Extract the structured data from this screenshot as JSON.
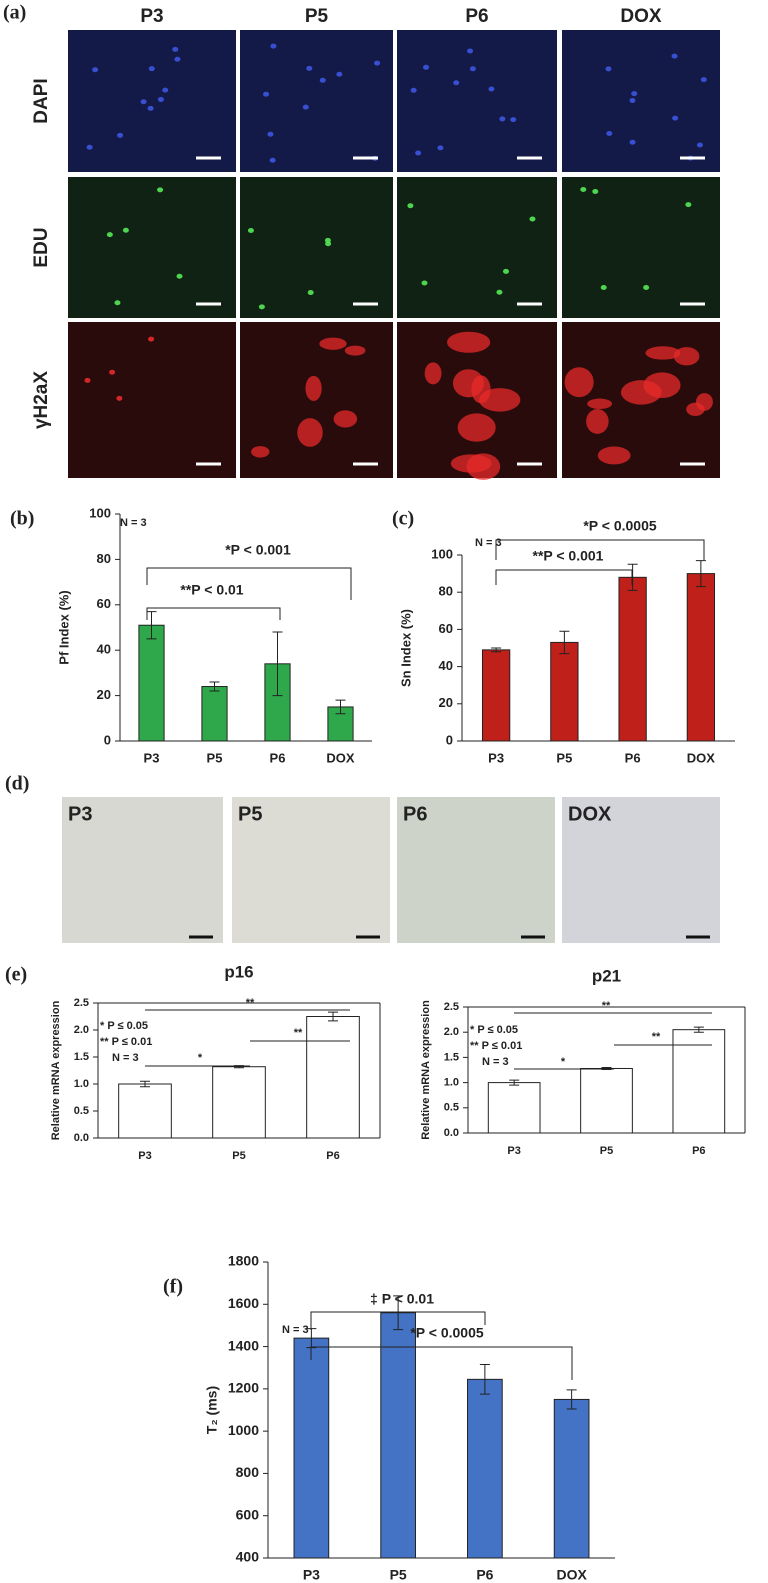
{
  "panel_labels": [
    "(a)",
    "(b)",
    "(c)",
    "(d)",
    "(e)",
    "(f)"
  ],
  "micrographs": {
    "columns": [
      "P3",
      "P5",
      "P6",
      "DOX"
    ],
    "rows": [
      "DAPI",
      "EDU",
      "γH2aX"
    ]
  },
  "staining": {
    "columns": [
      "P3",
      "P5",
      "P6",
      "DOX"
    ]
  },
  "chart_data": [
    {
      "type": "bar",
      "ylabel": "Pf Index (%)",
      "categories": [
        "P3",
        "P5",
        "P6",
        "DOX"
      ],
      "values": [
        51,
        24,
        34,
        15
      ],
      "errors": [
        6,
        2,
        14,
        3
      ],
      "color": "#2ea84a",
      "ylim": [
        0,
        100
      ],
      "yticks": [
        0,
        20,
        40,
        60,
        80,
        100
      ],
      "annotations": [
        "N = 3",
        "*P < 0.001",
        "**P < 0.01"
      ]
    },
    {
      "type": "bar",
      "ylabel": "Sn Index (%)",
      "categories": [
        "P3",
        "P5",
        "P6",
        "DOX"
      ],
      "values": [
        49,
        53,
        88,
        90
      ],
      "errors": [
        1,
        6,
        7,
        7
      ],
      "color": "#c0201a",
      "ylim": [
        0,
        100
      ],
      "yticks": [
        0,
        20,
        40,
        60,
        80,
        100
      ],
      "annotations": [
        "N = 3",
        "*P < 0.0005",
        "**P < 0.001"
      ]
    },
    {
      "type": "bar",
      "title": "p16",
      "ylabel": "Relative mRNA expression",
      "categories": [
        "P3",
        "P5",
        "P6"
      ],
      "values": [
        1.0,
        1.32,
        2.25
      ],
      "errors": [
        0.05,
        0.02,
        0.08
      ],
      "color": "#ffffff",
      "ylim": [
        0,
        2.5
      ],
      "yticks": [
        {
          "value": 0,
          "label": "0.0"
        },
        {
          "value": 0.5,
          "label": "0.5"
        },
        {
          "value": 1,
          "label": "1.0"
        },
        {
          "value": 1.5,
          "label": "1.5"
        },
        {
          "value": 2,
          "label": "2.0"
        },
        {
          "value": 2.5,
          "label": "2.5"
        }
      ],
      "annotations": [
        "* P ≤ 0.05",
        "** P ≤ 0.01",
        "N = 3",
        "*",
        "**",
        "**"
      ]
    },
    {
      "type": "bar",
      "title": "p21",
      "ylabel": "Relative mRNA expression",
      "categories": [
        "P3",
        "P5",
        "P6"
      ],
      "values": [
        1.0,
        1.28,
        2.05
      ],
      "errors": [
        0.05,
        0.02,
        0.05
      ],
      "color": "#ffffff",
      "ylim": [
        0,
        2.5
      ],
      "yticks": [
        {
          "value": 0,
          "label": "0.0"
        },
        {
          "value": 0.5,
          "label": "0.5"
        },
        {
          "value": 1,
          "label": "1.0"
        },
        {
          "value": 1.5,
          "label": "1.5"
        },
        {
          "value": 2,
          "label": "2.0"
        },
        {
          "value": 2.5,
          "label": "2.5"
        }
      ],
      "annotations": [
        "* P ≤ 0.05",
        "** P ≤ 0.01",
        "N = 3",
        "*",
        "**",
        "**"
      ]
    },
    {
      "type": "bar",
      "ylabel": "T₂ (ms)",
      "categories": [
        "P3",
        "P5",
        "P6",
        "DOX"
      ],
      "values": [
        1440,
        1560,
        1245,
        1150
      ],
      "errors": [
        45,
        80,
        70,
        45
      ],
      "color": "#4472c4",
      "ylim": [
        400,
        1800
      ],
      "yticks": [
        400,
        600,
        800,
        1000,
        1200,
        1400,
        1600,
        1800
      ],
      "annotations": [
        "N = 3",
        "‡ P < 0.01",
        "*P < 0.0005"
      ]
    }
  ]
}
